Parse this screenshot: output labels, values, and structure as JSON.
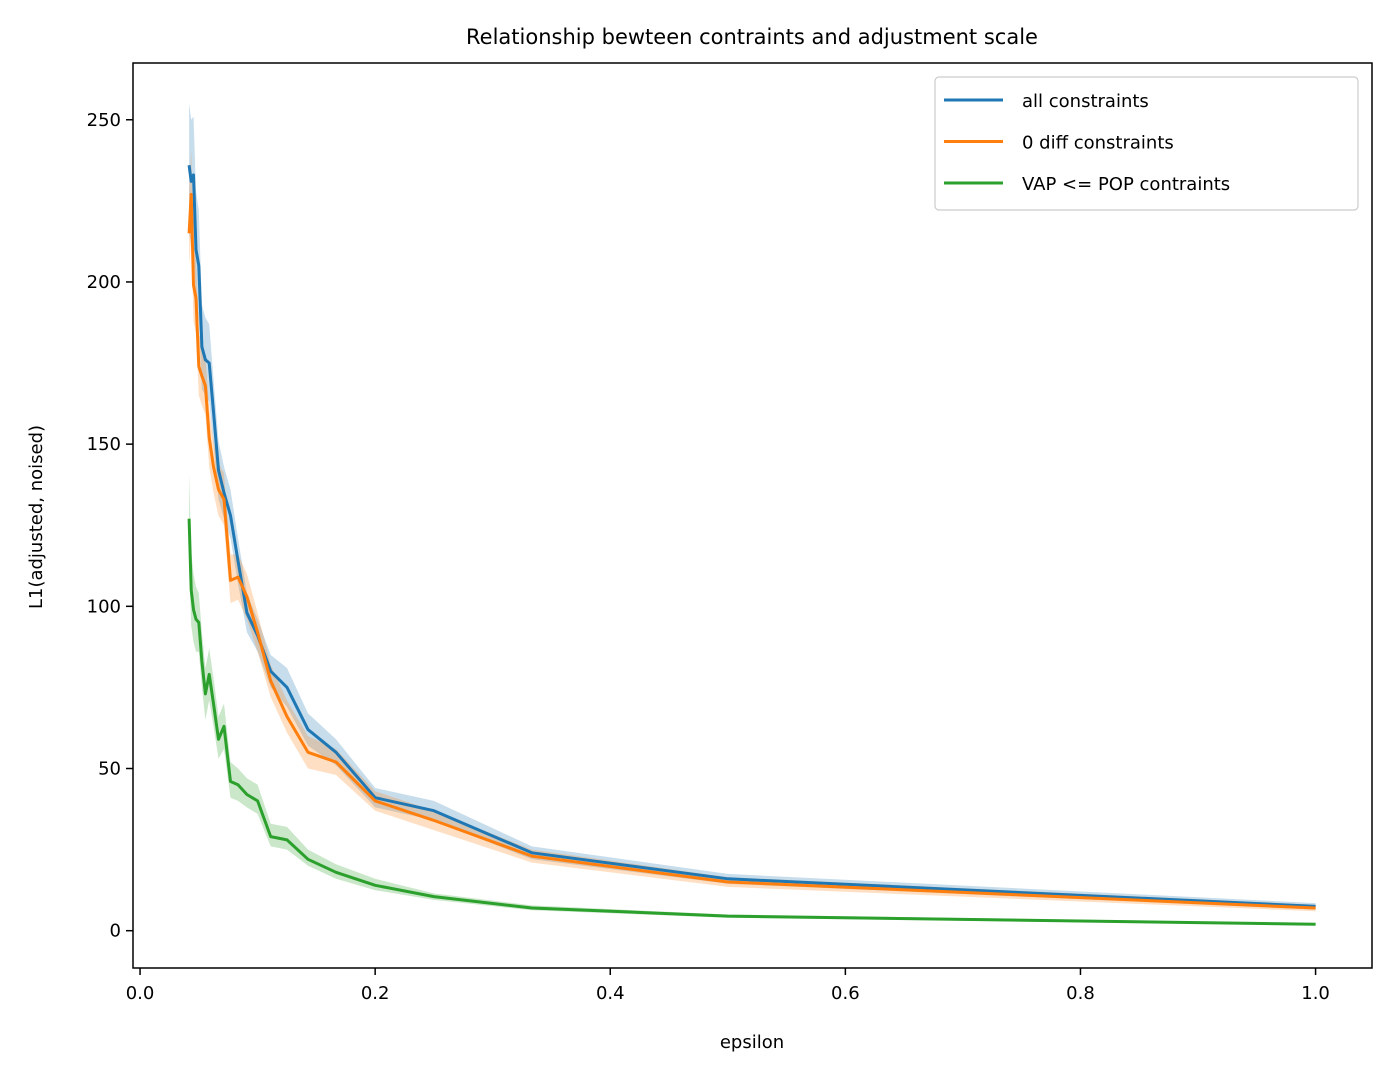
{
  "chart_data": {
    "type": "line",
    "title": "Relationship bewteen contraints and adjustment scale",
    "xlabel": "epsilon",
    "ylabel": "L1(adjusted, noised)",
    "xlim": [
      -0.006,
      1.048
    ],
    "ylim": [
      -11.5,
      267.5
    ],
    "xticks": [
      0.0,
      0.2,
      0.4,
      0.6,
      0.8,
      1.0
    ],
    "xtick_labels": [
      "0.0",
      "0.2",
      "0.4",
      "0.6",
      "0.8",
      "1.0"
    ],
    "yticks": [
      0,
      50,
      100,
      150,
      200,
      250
    ],
    "ytick_labels": [
      "0",
      "50",
      "100",
      "150",
      "200",
      "250"
    ],
    "grid": false,
    "legend_position": "top-right",
    "series": [
      {
        "name": "all constraints",
        "color": "#1f77b4",
        "points": [
          [
            0.0417,
            236
          ],
          [
            0.0435,
            231
          ],
          [
            0.0455,
            233
          ],
          [
            0.0476,
            210
          ],
          [
            0.05,
            205
          ],
          [
            0.0526,
            180
          ],
          [
            0.0556,
            176
          ],
          [
            0.0588,
            175
          ],
          [
            0.0625,
            160
          ],
          [
            0.0667,
            142
          ],
          [
            0.0714,
            135
          ],
          [
            0.0769,
            128
          ],
          [
            0.0833,
            114
          ],
          [
            0.0909,
            98
          ],
          [
            0.1,
            91
          ],
          [
            0.1111,
            80
          ],
          [
            0.125,
            75
          ],
          [
            0.1429,
            62
          ],
          [
            0.1667,
            55
          ],
          [
            0.2,
            41
          ],
          [
            0.25,
            37
          ],
          [
            0.3333,
            24
          ],
          [
            0.5,
            16
          ],
          [
            1.0,
            7.5
          ]
        ],
        "lower": [
          [
            0.0417,
            215
          ],
          [
            0.0435,
            212
          ],
          [
            0.0455,
            214
          ],
          [
            0.0476,
            192
          ],
          [
            0.05,
            188
          ],
          [
            0.0526,
            167
          ],
          [
            0.0556,
            165
          ],
          [
            0.0588,
            163
          ],
          [
            0.0625,
            150
          ],
          [
            0.0667,
            133
          ],
          [
            0.0714,
            127
          ],
          [
            0.0769,
            121
          ],
          [
            0.0833,
            107
          ],
          [
            0.0909,
            92
          ],
          [
            0.1,
            86
          ],
          [
            0.1111,
            75
          ],
          [
            0.125,
            69
          ],
          [
            0.1429,
            57
          ],
          [
            0.1667,
            51
          ],
          [
            0.2,
            38
          ],
          [
            0.25,
            34
          ],
          [
            0.3333,
            22
          ],
          [
            0.5,
            14.5
          ],
          [
            1.0,
            6.5
          ]
        ],
        "upper": [
          [
            0.0417,
            255
          ],
          [
            0.0435,
            250
          ],
          [
            0.0455,
            251
          ],
          [
            0.0476,
            228
          ],
          [
            0.05,
            222
          ],
          [
            0.0526,
            193
          ],
          [
            0.0556,
            189
          ],
          [
            0.0588,
            187
          ],
          [
            0.0625,
            170
          ],
          [
            0.0667,
            151
          ],
          [
            0.0714,
            143
          ],
          [
            0.0769,
            136
          ],
          [
            0.0833,
            121
          ],
          [
            0.0909,
            104
          ],
          [
            0.1,
            96
          ],
          [
            0.1111,
            85
          ],
          [
            0.125,
            81
          ],
          [
            0.1429,
            67
          ],
          [
            0.1667,
            59
          ],
          [
            0.2,
            44
          ],
          [
            0.25,
            40
          ],
          [
            0.3333,
            26
          ],
          [
            0.5,
            17.5
          ],
          [
            1.0,
            8.5
          ]
        ]
      },
      {
        "name": "0 diff constraints",
        "color": "#ff7f0e",
        "points": [
          [
            0.0417,
            215
          ],
          [
            0.0435,
            227
          ],
          [
            0.0455,
            199
          ],
          [
            0.0476,
            195
          ],
          [
            0.05,
            174
          ],
          [
            0.0526,
            171
          ],
          [
            0.0556,
            168
          ],
          [
            0.0588,
            152
          ],
          [
            0.0625,
            143
          ],
          [
            0.0667,
            136
          ],
          [
            0.0714,
            133
          ],
          [
            0.0769,
            108
          ],
          [
            0.0833,
            109
          ],
          [
            0.0909,
            103
          ],
          [
            0.1,
            92
          ],
          [
            0.1111,
            77
          ],
          [
            0.125,
            66
          ],
          [
            0.1429,
            55
          ],
          [
            0.1667,
            52
          ],
          [
            0.2,
            40
          ],
          [
            0.25,
            34
          ],
          [
            0.3333,
            23
          ],
          [
            0.5,
            15
          ],
          [
            1.0,
            7
          ]
        ],
        "lower": [
          [
            0.0417,
            205
          ],
          [
            0.0435,
            214
          ],
          [
            0.0455,
            188
          ],
          [
            0.0476,
            184
          ],
          [
            0.05,
            165
          ],
          [
            0.0526,
            162
          ],
          [
            0.0556,
            159
          ],
          [
            0.0588,
            143
          ],
          [
            0.0625,
            135
          ],
          [
            0.0667,
            128
          ],
          [
            0.0714,
            125
          ],
          [
            0.0769,
            101
          ],
          [
            0.0833,
            102
          ],
          [
            0.0909,
            96
          ],
          [
            0.1,
            86
          ],
          [
            0.1111,
            72
          ],
          [
            0.125,
            61
          ],
          [
            0.1429,
            50
          ],
          [
            0.1667,
            48
          ],
          [
            0.2,
            37
          ],
          [
            0.25,
            31
          ],
          [
            0.3333,
            21
          ],
          [
            0.5,
            13.5
          ],
          [
            1.0,
            6
          ]
        ],
        "upper": [
          [
            0.0417,
            228
          ],
          [
            0.0435,
            241
          ],
          [
            0.0455,
            212
          ],
          [
            0.0476,
            207
          ],
          [
            0.05,
            184
          ],
          [
            0.0526,
            181
          ],
          [
            0.0556,
            177
          ],
          [
            0.0588,
            161
          ],
          [
            0.0625,
            151
          ],
          [
            0.0667,
            144
          ],
          [
            0.0714,
            141
          ],
          [
            0.0769,
            116
          ],
          [
            0.0833,
            116
          ],
          [
            0.0909,
            110
          ],
          [
            0.1,
            98
          ],
          [
            0.1111,
            82
          ],
          [
            0.125,
            71
          ],
          [
            0.1429,
            60
          ],
          [
            0.1667,
            56
          ],
          [
            0.2,
            43
          ],
          [
            0.25,
            37
          ],
          [
            0.3333,
            25
          ],
          [
            0.5,
            16.5
          ],
          [
            1.0,
            8
          ]
        ]
      },
      {
        "name": "VAP <= POP contraints",
        "color": "#2ca02c",
        "points": [
          [
            0.0417,
            127
          ],
          [
            0.0435,
            105
          ],
          [
            0.0455,
            99
          ],
          [
            0.0476,
            96
          ],
          [
            0.05,
            95
          ],
          [
            0.0526,
            83
          ],
          [
            0.0556,
            73
          ],
          [
            0.0588,
            79
          ],
          [
            0.0625,
            70
          ],
          [
            0.0667,
            59
          ],
          [
            0.0714,
            63
          ],
          [
            0.0769,
            46
          ],
          [
            0.0833,
            45
          ],
          [
            0.0909,
            42
          ],
          [
            0.1,
            40
          ],
          [
            0.1111,
            29
          ],
          [
            0.125,
            28
          ],
          [
            0.1429,
            22
          ],
          [
            0.1667,
            18
          ],
          [
            0.2,
            14
          ],
          [
            0.25,
            10.5
          ],
          [
            0.3333,
            7
          ],
          [
            0.5,
            4.5
          ],
          [
            1.0,
            2
          ]
        ],
        "lower": [
          [
            0.0417,
            113
          ],
          [
            0.0435,
            94
          ],
          [
            0.0455,
            89
          ],
          [
            0.0476,
            86
          ],
          [
            0.05,
            86
          ],
          [
            0.0526,
            75
          ],
          [
            0.0556,
            65
          ],
          [
            0.0588,
            71
          ],
          [
            0.0625,
            63
          ],
          [
            0.0667,
            53
          ],
          [
            0.0714,
            56
          ],
          [
            0.0769,
            41
          ],
          [
            0.0833,
            40
          ],
          [
            0.0909,
            38
          ],
          [
            0.1,
            36
          ],
          [
            0.1111,
            26
          ],
          [
            0.125,
            25
          ],
          [
            0.1429,
            20
          ],
          [
            0.1667,
            16
          ],
          [
            0.2,
            12.5
          ],
          [
            0.25,
            9.5
          ],
          [
            0.3333,
            6.3
          ],
          [
            0.5,
            4
          ],
          [
            1.0,
            1.7
          ]
        ],
        "upper": [
          [
            0.0417,
            141
          ],
          [
            0.0435,
            117
          ],
          [
            0.0455,
            110
          ],
          [
            0.0476,
            106
          ],
          [
            0.05,
            104
          ],
          [
            0.0526,
            92
          ],
          [
            0.0556,
            81
          ],
          [
            0.0588,
            87
          ],
          [
            0.0625,
            78
          ],
          [
            0.0667,
            66
          ],
          [
            0.0714,
            70
          ],
          [
            0.0769,
            52
          ],
          [
            0.0833,
            50
          ],
          [
            0.0909,
            47
          ],
          [
            0.1,
            45
          ],
          [
            0.1111,
            33
          ],
          [
            0.125,
            32
          ],
          [
            0.1429,
            25
          ],
          [
            0.1667,
            20.5
          ],
          [
            0.2,
            16
          ],
          [
            0.25,
            11.5
          ],
          [
            0.3333,
            7.8
          ],
          [
            0.5,
            5
          ],
          [
            1.0,
            2.3
          ]
        ]
      }
    ]
  }
}
